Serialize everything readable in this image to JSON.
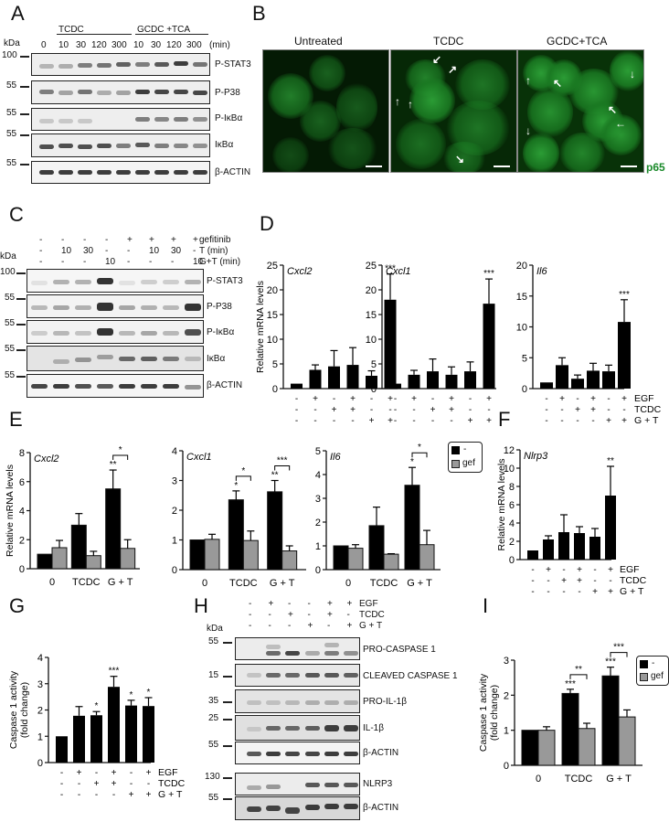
{
  "panels": {
    "A": {
      "letter": "A",
      "kda_label": "kDa",
      "group1": "TCDC",
      "group2": "GCDC +TCA",
      "lanes": [
        "0",
        "10",
        "30",
        "120",
        "300",
        "10",
        "30",
        "120",
        "300",
        "(min)"
      ],
      "markers": [
        "100",
        "55",
        "55",
        "55",
        "55"
      ],
      "blots": [
        "P-STAT3",
        "P-P38",
        "P-IκBα",
        "IκBα",
        "β-ACTIN"
      ]
    },
    "B": {
      "letter": "B",
      "conditions": [
        "Untreated",
        "TCDC",
        "GCDC+TCA"
      ],
      "stain": "p65",
      "stain_color": "#1a8a2a"
    },
    "C": {
      "letter": "C",
      "kda_label": "kDa",
      "rows": [
        {
          "label": "gefitinib",
          "values": [
            "-",
            "-",
            "-",
            "-",
            "+",
            "+",
            "+",
            "+"
          ]
        },
        {
          "label": "T (min)",
          "values": [
            "-",
            "10",
            "30",
            "-",
            "-",
            "10",
            "30",
            "-"
          ]
        },
        {
          "label": "G+T (min)",
          "values": [
            "-",
            "-",
            "-",
            "10",
            "-",
            "-",
            "-",
            "10"
          ]
        }
      ],
      "markers": [
        "100",
        "55",
        "55",
        "55",
        "55"
      ],
      "blots": [
        "P-STAT3",
        "P-P38",
        "P-IκBα",
        "IκBα",
        "β-ACTIN"
      ]
    },
    "D": {
      "letter": "D"
    },
    "E": {
      "letter": "E"
    },
    "F": {
      "letter": "F"
    },
    "G": {
      "letter": "G"
    },
    "H": {
      "letter": "H",
      "kda_label": "kDa",
      "rows": [
        {
          "label": "EGF",
          "values": [
            "-",
            "+",
            "-",
            "-",
            "+",
            "+"
          ]
        },
        {
          "label": "TCDC",
          "values": [
            "-",
            "-",
            "+",
            "-",
            "+",
            "-"
          ]
        },
        {
          "label": "G + T",
          "values": [
            "-",
            "-",
            "-",
            "+",
            "-",
            "+"
          ]
        }
      ],
      "markers": [
        "55",
        "15",
        "35",
        "25",
        "55",
        "130",
        "55"
      ],
      "blots": [
        "PRO-CASPASE 1",
        "CLEAVED CASPASE 1",
        "PRO-IL-1β",
        "IL-1β",
        "β-ACTIN",
        "NLRP3",
        "β-ACTIN"
      ]
    },
    "I": {
      "letter": "I"
    }
  },
  "legend": {
    "black": "-",
    "gray": "gef"
  },
  "treatment_rows": {
    "labels": [
      "EGF",
      "TCDC",
      "G + T"
    ],
    "EGF": [
      "-",
      "+",
      "-",
      "+",
      "-",
      "+"
    ],
    "TCDC": [
      "-",
      "-",
      "+",
      "+",
      "-",
      "-"
    ],
    "GT": [
      "-",
      "-",
      "-",
      "-",
      "+",
      "+"
    ]
  },
  "chart_data": [
    {
      "panel": "D",
      "type": "bar",
      "title": "Cxcl2",
      "ylabel": "Relative mRNA levels",
      "ylim": [
        0,
        25
      ],
      "yticks": [
        0,
        5,
        10,
        15,
        20,
        25
      ],
      "categories": [
        "ctrl",
        "EGF",
        "TCDC",
        "EGF+TCDC",
        "G+T",
        "EGF+G+T"
      ],
      "values": [
        1,
        3.8,
        4.5,
        4.8,
        2.6,
        18
      ],
      "errors": [
        0,
        1.0,
        3.2,
        3.5,
        1.0,
        5.2
      ],
      "annotations": [
        "",
        "",
        "",
        "",
        "",
        "***"
      ]
    },
    {
      "panel": "D",
      "type": "bar",
      "title": "Cxcl1",
      "ylabel": "",
      "ylim": [
        0,
        25
      ],
      "yticks": [
        0,
        5,
        10,
        15,
        20,
        25
      ],
      "categories": [
        "ctrl",
        "EGF",
        "TCDC",
        "EGF+TCDC",
        "G+T",
        "EGF+G+T"
      ],
      "values": [
        1,
        2.8,
        3.5,
        2.8,
        3.5,
        17.2
      ],
      "errors": [
        0,
        0.9,
        2.5,
        1.6,
        1.9,
        5.0
      ],
      "annotations": [
        "",
        "",
        "",
        "",
        "",
        "***"
      ]
    },
    {
      "panel": "D",
      "type": "bar",
      "title": "Il6",
      "ylabel": "",
      "ylim": [
        0,
        20
      ],
      "yticks": [
        0,
        5,
        10,
        15,
        20
      ],
      "categories": [
        "ctrl",
        "EGF",
        "TCDC",
        "EGF+TCDC",
        "G+T",
        "EGF+G+T"
      ],
      "values": [
        1,
        3.8,
        1.6,
        2.9,
        2.8,
        10.8
      ],
      "errors": [
        0,
        1.2,
        0.6,
        1.2,
        1.0,
        3.6
      ],
      "annotations": [
        "",
        "",
        "",
        "",
        "",
        "***"
      ]
    },
    {
      "panel": "E",
      "type": "bar",
      "title": "Cxcl2",
      "ylabel": "Relative mRNA levels",
      "ylim": [
        0,
        8
      ],
      "yticks": [
        0,
        2,
        4,
        6,
        8
      ],
      "categories": [
        "0",
        "TCDC",
        "G + T"
      ],
      "series": [
        {
          "name": "-",
          "values": [
            1,
            3.0,
            5.5
          ],
          "errors": [
            0,
            0.8,
            1.3
          ]
        },
        {
          "name": "gef",
          "values": [
            1.45,
            0.9,
            1.4
          ],
          "errors": [
            0.5,
            0.3,
            0.6
          ]
        }
      ],
      "annotations": [
        {
          "over": "G + T -",
          "text": "**"
        },
        {
          "bracket": "G + T",
          "text": "*"
        }
      ]
    },
    {
      "panel": "E",
      "type": "bar",
      "title": "Cxcl1",
      "ylabel": "",
      "ylim": [
        0,
        4
      ],
      "yticks": [
        0,
        1,
        2,
        3,
        4
      ],
      "categories": [
        "0",
        "TCDC",
        "G + T"
      ],
      "series": [
        {
          "name": "-",
          "values": [
            1,
            2.35,
            2.62
          ],
          "errors": [
            0,
            0.3,
            0.38
          ]
        },
        {
          "name": "gef",
          "values": [
            1.02,
            0.98,
            0.63
          ],
          "errors": [
            0.17,
            0.32,
            0.17
          ]
        }
      ],
      "annotations": [
        {
          "over": "TCDC -",
          "text": "*"
        },
        {
          "bracket": "TCDC",
          "text": "*"
        },
        {
          "over": "G + T -",
          "text": "**"
        },
        {
          "bracket": "G + T",
          "text": "***"
        }
      ]
    },
    {
      "panel": "E",
      "type": "bar",
      "title": "Il6",
      "ylabel": "",
      "ylim": [
        0,
        5
      ],
      "yticks": [
        0,
        1,
        2,
        3,
        4,
        5
      ],
      "categories": [
        "0",
        "TCDC",
        "G + T"
      ],
      "series": [
        {
          "name": "-",
          "values": [
            1,
            1.85,
            3.55
          ],
          "errors": [
            0,
            0.78,
            0.75
          ]
        },
        {
          "name": "gef",
          "values": [
            0.9,
            0.65,
            1.05
          ],
          "errors": [
            0.15,
            0.02,
            0.6
          ]
        }
      ],
      "annotations": [
        {
          "over": "G + T -",
          "text": "*"
        },
        {
          "bracket": "G + T",
          "text": "*"
        }
      ]
    },
    {
      "panel": "F",
      "type": "bar",
      "title": "Nlrp3",
      "ylabel": "Relative mRNA levels",
      "ylim": [
        0,
        12
      ],
      "yticks": [
        0,
        2,
        4,
        6,
        8,
        10,
        12
      ],
      "categories": [
        "ctrl",
        "EGF",
        "TCDC",
        "EGF+TCDC",
        "G+T",
        "EGF+G+T"
      ],
      "values": [
        1,
        2.2,
        3.0,
        2.9,
        2.5,
        7.0
      ],
      "errors": [
        0,
        0.4,
        1.9,
        0.7,
        0.9,
        3.2
      ],
      "annotations": [
        "",
        "",
        "",
        "",
        "",
        "**"
      ]
    },
    {
      "panel": "G",
      "type": "bar",
      "title": "",
      "ylabel": "Caspase 1 activity (fold change)",
      "ylim": [
        0,
        4
      ],
      "yticks": [
        0,
        1,
        2,
        3,
        4
      ],
      "categories": [
        "ctrl",
        "EGF",
        "TCDC",
        "EGF+TCDC",
        "G+T",
        "EGF+G+T"
      ],
      "values": [
        1,
        1.78,
        1.8,
        2.88,
        2.17,
        2.15
      ],
      "errors": [
        0,
        0.35,
        0.14,
        0.4,
        0.2,
        0.32
      ],
      "annotations": [
        "",
        "",
        "*",
        "***",
        "*",
        "*"
      ]
    },
    {
      "panel": "I",
      "type": "bar",
      "title": "",
      "ylabel": "Caspase 1 activity (fold change)",
      "ylim": [
        0,
        3
      ],
      "yticks": [
        0,
        1,
        2,
        3
      ],
      "categories": [
        "0",
        "TCDC",
        "G + T"
      ],
      "series": [
        {
          "name": "-",
          "values": [
            1,
            2.05,
            2.55
          ],
          "errors": [
            0,
            0.12,
            0.25
          ]
        },
        {
          "name": "gef",
          "values": [
            1.0,
            1.05,
            1.38
          ],
          "errors": [
            0.1,
            0.15,
            0.2
          ]
        }
      ],
      "annotations": [
        {
          "over": "TCDC -",
          "text": "***"
        },
        {
          "bracket": "TCDC",
          "text": "**"
        },
        {
          "over": "G + T -",
          "text": "***"
        },
        {
          "bracket": "G + T",
          "text": "***"
        }
      ]
    }
  ]
}
